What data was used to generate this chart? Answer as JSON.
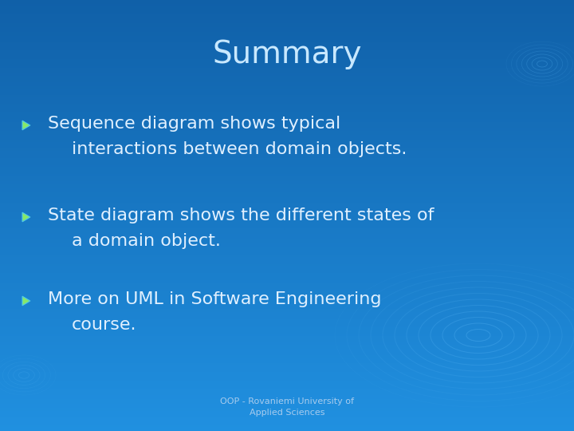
{
  "title": "Summary",
  "title_color": "#c8e8ff",
  "title_fontsize": 28,
  "bg_color": "#1a7fd4",
  "bg_color_top": "#1060a8",
  "bg_color_bottom": "#2090e0",
  "text_color": "#e0f0ff",
  "bullets": [
    [
      "Sequence diagram shows typical",
      "interactions between domain objects."
    ],
    [
      "State diagram shows the different states of",
      "a domain object."
    ],
    [
      "More on UML in Software Engineering",
      "course."
    ]
  ],
  "footer": "OOP - Rovaniemi University of\nApplied Sciences",
  "footer_color": "#a8ccee",
  "footer_fontsize": 8,
  "bullet_fontsize": 16,
  "bullet_color_outer": "#4fc8e8",
  "bullet_color_inner": "#88e868",
  "ripple_color": "#4aa8e8"
}
